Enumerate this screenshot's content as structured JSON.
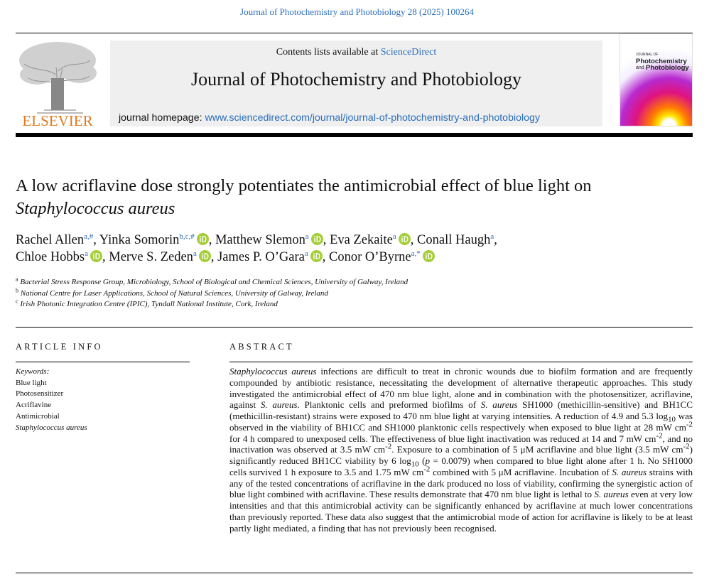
{
  "header": {
    "citation": "Journal of Photochemistry and Photobiology 28 (2025) 100264",
    "contents_prefix": "Contents lists available at ",
    "contents_link": "ScienceDirect",
    "journal_name": "Journal of Photochemistry and Photobiology",
    "homepage_prefix": "journal homepage: ",
    "homepage_url": "www.sciencedirect.com/journal/journal-of-photochemistry-and-photobiology",
    "publisher": "ELSEVIER",
    "cover": {
      "line1": "JOURNAL OF",
      "line2": "Photochemistry",
      "line3": "and",
      "line4": "Photobiology"
    }
  },
  "title": {
    "main": "A low acriflavine dose strongly potentiates the antimicrobial effect of blue light on ",
    "italic": "Staphylococcus aureus"
  },
  "authors": {
    "separator": ",",
    "list": [
      {
        "name": "Rachel Allen",
        "affil": "a,#",
        "orcid": false
      },
      {
        "name": "Yinka Somorin",
        "affil": "b,c,#",
        "orcid": true
      },
      {
        "name": "Matthew Slemon",
        "affil": "a",
        "orcid": true
      },
      {
        "name": "Eva Zekaite",
        "affil": "a",
        "orcid": true
      },
      {
        "name": "Conall Haugh",
        "affil": "a",
        "orcid": false
      },
      {
        "name": "Chloe Hobbs",
        "affil": "a",
        "orcid": true
      },
      {
        "name": "Merve S. Zeden",
        "affil": "a",
        "orcid": true
      },
      {
        "name": "James P. O’Gara",
        "affil": "a",
        "orcid": true
      },
      {
        "name": "Conor O’Byrne",
        "affil": "a,*",
        "orcid": true
      }
    ]
  },
  "affiliations": [
    {
      "key": "a",
      "text": "Bacterial Stress Response Group, Microbiology, School of Biological and Chemical Sciences, University of Galway, Ireland"
    },
    {
      "key": "b",
      "text": "National Centre for Laser Applications, School of Natural Sciences, University of Galway, Ireland"
    },
    {
      "key": "c",
      "text": "Irish Photonic Integration Centre (IPIC), Tyndall National Institute, Cork, Ireland"
    }
  ],
  "article_info": {
    "heading": "ARTICLE INFO",
    "keywords_label": "Keywords:",
    "keywords": [
      "Blue light",
      "Photosensitizer",
      "Acriflavine",
      "Antimicrobial",
      "Staphylococcus aureus"
    ]
  },
  "abstract": {
    "heading": "ABSTRACT",
    "runs": [
      "Staphylococcus aureus",
      " infections are difficult to treat in chronic wounds due to biofilm formation and are frequently compounded by antibiotic resistance, necessitating the development of alternative therapeutic approaches. This study investigated the antimicrobial effect of 470 nm blue light, alone and in combination with the photosensitizer, acriflavine, against ",
      "S. aureus",
      ". Planktonic cells and preformed biofilms of ",
      "S. aureus",
      " SH1000 (methicillin-sensitive) and BH1CC (methicillin-resistant) strains were exposed to 470 nm blue light at varying intensities. A reduction of 4.9 and 5.3 log",
      "10",
      " was observed in the viability of BH1CC and SH1000 planktonic cells respectively when exposed to blue light at 28 mW cm",
      "-2",
      " for 4 h compared to unexposed cells. The effectiveness of blue light inactivation was reduced at 14 and 7 mW cm",
      "-2",
      ", and no inactivation was observed at 3.5 mW cm",
      "-2",
      ". Exposure to a combination of 5 μM acriflavine and blue light (3.5 mW cm",
      "-2",
      ") significantly reduced BH1CC viability by 6 log",
      "10",
      " (",
      "p",
      " = 0.0079) when compared to blue light alone after 1 h. No SH1000 cells survived 1 h exposure to 3.5 and 1.75 mW cm",
      "-2",
      " combined with 5 μM acriflavine. Incubation of ",
      "S. aureus",
      " strains with any of the tested concentrations of acriflavine in the dark produced no loss of viability, confirming the synergistic action of blue light combined with acriflavine. These results demonstrate that 470 nm blue light is lethal to ",
      "S. aureus",
      " even at very low intensities and that this antimicrobial activity can be significantly enhanced by acriflavine at much lower concentrations than previously reported. These data also suggest that the antimicrobial mode of action for acriflavine is likely to be at least partly light mediated, a finding that has not previously been recognised."
    ]
  }
}
